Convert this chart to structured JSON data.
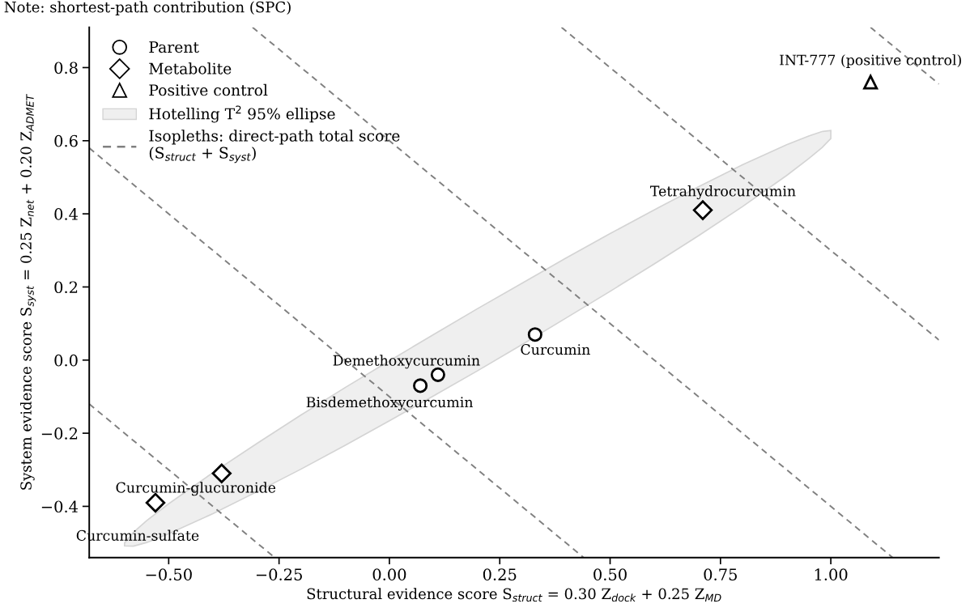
{
  "chart_data": {
    "type": "scatter",
    "xlabel": "Structural evidence score S$_{struct}$ = 0.30 Z$_{dock}$ + 0.25 Z$_{MD}$",
    "ylabel": "System evidence score S$_{syst}$ = 0.25 Z$_{net}$ + 0.20 Z$_{ADMET}$",
    "xlim": [
      -0.68,
      1.245
    ],
    "ylim": [
      -0.54,
      0.91
    ],
    "xticks": [
      {
        "value": -0.5,
        "label": "−0.50"
      },
      {
        "value": -0.25,
        "label": "−0.25"
      },
      {
        "value": 0,
        "label": "0.00"
      },
      {
        "value": 0.25,
        "label": "0.25"
      },
      {
        "value": 0.5,
        "label": "0.50"
      },
      {
        "value": 0.75,
        "label": "0.75"
      },
      {
        "value": 1.0,
        "label": "1.00"
      }
    ],
    "yticks": [
      {
        "value": -0.4,
        "label": "−0.4"
      },
      {
        "value": -0.2,
        "label": "−0.2"
      },
      {
        "value": 0,
        "label": "0.0"
      },
      {
        "value": 0.2,
        "label": "0.2"
      },
      {
        "value": 0.4,
        "label": "0.4"
      },
      {
        "value": 0.6,
        "label": "0.6"
      },
      {
        "value": 0.8,
        "label": "0.8"
      }
    ],
    "grid": false,
    "legend": "top left",
    "series": [
      {
        "name": "Parent",
        "type": "scatter",
        "marker": "circle",
        "color": "#000000",
        "x": [
          0.33,
          0.11,
          0.07
        ],
        "values": [
          0.07,
          -0.04,
          -0.07
        ]
      },
      {
        "name": "Metabolite",
        "type": "scatter",
        "marker": "diamond",
        "color": "#000000",
        "x": [
          0.71,
          -0.38,
          -0.53
        ],
        "values": [
          0.41,
          -0.31,
          -0.39
        ]
      },
      {
        "name": "Positive control",
        "type": "scatter",
        "marker": "triangle",
        "color": "#000000",
        "x": [
          1.09
        ],
        "values": [
          0.76
        ]
      },
      {
        "name": "Hotelling T$^{2}$ 95% ellipse",
        "type": "area",
        "color": "#efefef",
        "x": [
          -0.6,
          -0.58,
          -0.55,
          -0.5,
          -0.4,
          -0.3,
          -0.2,
          -0.1,
          0.0,
          0.1,
          0.2,
          0.3,
          0.4,
          0.5,
          0.6,
          0.7,
          0.8,
          0.9,
          0.95,
          0.98,
          1.0,
          1.0,
          0.98,
          0.95,
          0.9,
          0.8,
          0.7,
          0.6,
          0.5,
          0.4,
          0.3,
          0.2,
          0.1,
          0.0,
          -0.1,
          -0.2,
          -0.3,
          -0.4,
          -0.5,
          -0.55,
          -0.58,
          -0.6
        ],
        "values": [
          -0.5,
          -0.471,
          -0.439,
          -0.393,
          -0.308,
          -0.228,
          -0.15,
          -0.075,
          -0.002,
          0.07,
          0.141,
          0.21,
          0.279,
          0.346,
          0.411,
          0.474,
          0.534,
          0.589,
          0.613,
          0.625,
          0.628,
          0.606,
          0.581,
          0.551,
          0.505,
          0.42,
          0.34,
          0.263,
          0.188,
          0.115,
          0.042,
          -0.029,
          -0.098,
          -0.166,
          -0.233,
          -0.298,
          -0.36,
          -0.42,
          -0.475,
          -0.499,
          -0.509,
          -0.508
        ]
      },
      {
        "name": "Isopleths: direct-path total score\n(S$_{struct}$ + S$_{syst}$)",
        "type": "line",
        "line_style": "dashed",
        "marker": "none",
        "color": "#808080",
        "x": [
          -0.68,
          -0.26
        ],
        "values": [
          -0.12,
          -0.54
        ]
      },
      {
        "type": "line",
        "line_style": "dashed",
        "marker": "none",
        "color": "#808080",
        "x": [
          -0.68,
          0.44
        ],
        "values": [
          0.58,
          -0.54
        ]
      },
      {
        "type": "line",
        "line_style": "dashed",
        "marker": "none",
        "color": "#808080",
        "x": [
          -0.31,
          1.14
        ],
        "values": [
          0.91,
          -0.54
        ]
      },
      {
        "type": "line",
        "line_style": "dashed",
        "marker": "none",
        "color": "#808080",
        "x": [
          0.39,
          1.245
        ],
        "values": [
          0.91,
          0.055
        ]
      },
      {
        "type": "line",
        "line_style": "dashed",
        "marker": "none",
        "color": "#808080",
        "x": [
          1.09,
          1.245
        ],
        "values": [
          0.91,
          0.755
        ]
      }
    ],
    "annotations": [
      "Note: shortest-path contribution (SPC)",
      {
        "text": "Curcumin",
        "x": 0.33,
        "y": 0.07
      },
      {
        "text": "Tetrahydrocurcumin",
        "x": 0.71,
        "y": 0.41
      },
      {
        "text": "INT-777 (positive control)",
        "x": 1.09,
        "y": 0.76
      },
      {
        "text": "Demethoxycurcumin",
        "x": 0.11,
        "y": -0.04
      },
      {
        "text": "Bisdemethoxycurcumin",
        "x": 0.07,
        "y": -0.07
      },
      {
        "text": "Curcumin-glucuronide",
        "x": -0.38,
        "y": -0.31
      },
      {
        "text": "Curcumin-sulfate",
        "x": -0.53,
        "y": -0.39
      }
    ]
  }
}
